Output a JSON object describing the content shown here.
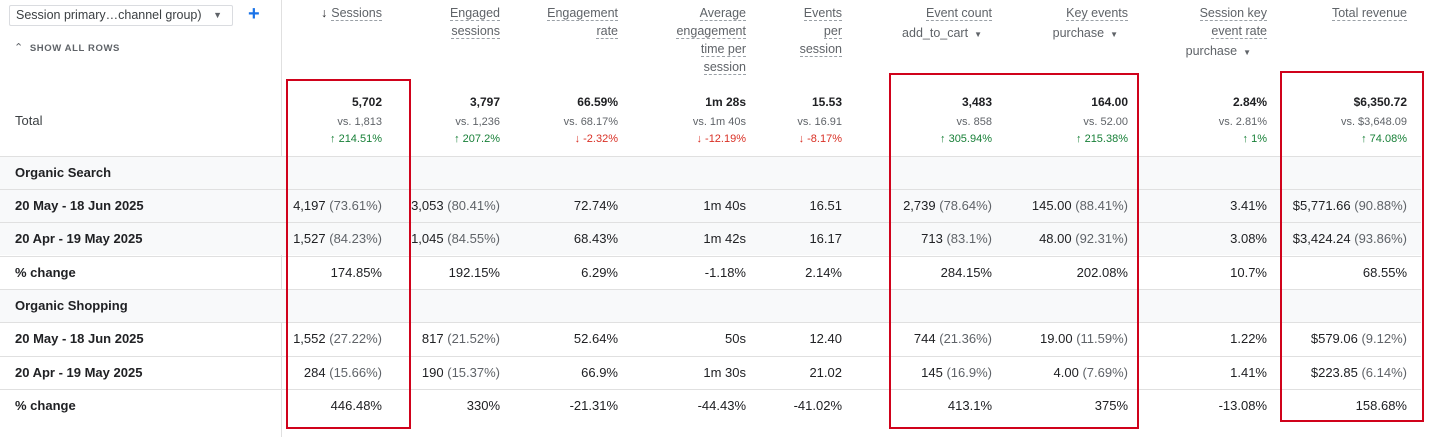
{
  "dimension_selector": {
    "label": "Session primary…channel group)"
  },
  "show_all_rows": "SHOW ALL ROWS",
  "columns": [
    {
      "lines": [
        "Sessions"
      ],
      "sorted": true
    },
    {
      "lines": [
        "Engaged",
        "sessions"
      ]
    },
    {
      "lines": [
        "Engagement",
        "rate"
      ]
    },
    {
      "lines": [
        "Average",
        "engagement",
        "time per",
        "session"
      ]
    },
    {
      "lines": [
        "Events",
        "per",
        "session"
      ]
    },
    {
      "lines": [
        "Event count"
      ],
      "filter": "add_to_cart"
    },
    {
      "lines": [
        "Key events"
      ],
      "filter": "purchase"
    },
    {
      "lines": [
        "Session key",
        "event rate"
      ],
      "filter": "purchase"
    },
    {
      "lines": [
        "Total revenue"
      ]
    }
  ],
  "total": {
    "label": "Total",
    "values": [
      {
        "value": "5,702",
        "vs": "vs. 1,813",
        "change": "↑ 214.51%",
        "dir": "up"
      },
      {
        "value": "3,797",
        "vs": "vs. 1,236",
        "change": "↑ 207.2%",
        "dir": "up"
      },
      {
        "value": "66.59%",
        "vs": "vs. 68.17%",
        "change": "↓ -2.32%",
        "dir": "down"
      },
      {
        "value": "1m 28s",
        "vs": "vs. 1m 40s",
        "change": "↓ -12.19%",
        "dir": "down"
      },
      {
        "value": "15.53",
        "vs": "vs. 16.91",
        "change": "↓ -8.17%",
        "dir": "down"
      },
      {
        "value": "3,483",
        "vs": "vs. 858",
        "change": "↑ 305.94%",
        "dir": "up"
      },
      {
        "value": "164.00",
        "vs": "vs. 52.00",
        "change": "↑ 215.38%",
        "dir": "up"
      },
      {
        "value": "2.84%",
        "vs": "vs. 2.81%",
        "change": "↑ 1%",
        "dir": "up"
      },
      {
        "value": "$6,350.72",
        "vs": "vs. $3,648.09",
        "change": "↑ 74.08%",
        "dir": "up"
      }
    ]
  },
  "rows": [
    {
      "label": "Organic Search",
      "group": true,
      "cells": []
    },
    {
      "label": "20 May - 18 Jun 2025",
      "shaded": true,
      "cells": [
        [
          "4,197",
          " (73.61%)"
        ],
        [
          "3,053",
          " (80.41%)"
        ],
        [
          "72.74%",
          ""
        ],
        [
          "1m 40s",
          ""
        ],
        [
          "16.51",
          ""
        ],
        [
          "2,739",
          " (78.64%)"
        ],
        [
          "145.00",
          " (88.41%)"
        ],
        [
          "3.41%",
          ""
        ],
        [
          "$5,771.66",
          " (90.88%)"
        ]
      ]
    },
    {
      "label": "20 Apr - 19 May 2025",
      "shaded": true,
      "cells": [
        [
          "1,527",
          " (84.23%)"
        ],
        [
          "1,045",
          " (84.55%)"
        ],
        [
          "68.43%",
          ""
        ],
        [
          "1m 42s",
          ""
        ],
        [
          "16.17",
          ""
        ],
        [
          "713",
          " (83.1%)"
        ],
        [
          "48.00",
          " (92.31%)"
        ],
        [
          "3.08%",
          ""
        ],
        [
          "$3,424.24",
          " (93.86%)"
        ]
      ]
    },
    {
      "label": "% change",
      "cells": [
        [
          "174.85%",
          ""
        ],
        [
          "192.15%",
          ""
        ],
        [
          "6.29%",
          ""
        ],
        [
          "-1.18%",
          ""
        ],
        [
          "2.14%",
          ""
        ],
        [
          "284.15%",
          ""
        ],
        [
          "202.08%",
          ""
        ],
        [
          "10.7%",
          ""
        ],
        [
          "68.55%",
          ""
        ]
      ]
    },
    {
      "label": "Organic Shopping",
      "group": true,
      "cells": []
    },
    {
      "label": "20 May - 18 Jun 2025",
      "cells": [
        [
          "1,552",
          " (27.22%)"
        ],
        [
          "817",
          " (21.52%)"
        ],
        [
          "52.64%",
          ""
        ],
        [
          "50s",
          ""
        ],
        [
          "12.40",
          ""
        ],
        [
          "744",
          " (21.36%)"
        ],
        [
          "19.00",
          " (11.59%)"
        ],
        [
          "1.22%",
          ""
        ],
        [
          "$579.06",
          " (9.12%)"
        ]
      ]
    },
    {
      "label": "20 Apr - 19 May 2025",
      "cells": [
        [
          "284",
          " (15.66%)"
        ],
        [
          "190",
          " (15.37%)"
        ],
        [
          "66.9%",
          ""
        ],
        [
          "1m 30s",
          ""
        ],
        [
          "21.02",
          ""
        ],
        [
          "145",
          " (16.9%)"
        ],
        [
          "4.00",
          " (7.69%)"
        ],
        [
          "1.41%",
          ""
        ],
        [
          "$223.85",
          " (6.14%)"
        ]
      ]
    },
    {
      "label": "% change",
      "cells": [
        [
          "446.48%",
          ""
        ],
        [
          "330%",
          ""
        ],
        [
          "-21.31%",
          ""
        ],
        [
          "-44.43%",
          ""
        ],
        [
          "-41.02%",
          ""
        ],
        [
          "413.1%",
          ""
        ],
        [
          "375%",
          ""
        ],
        [
          "-13.08%",
          ""
        ],
        [
          "158.68%",
          ""
        ]
      ]
    }
  ],
  "colors": {
    "up": "#188038",
    "down": "#d93025",
    "highlight": "#d0021b",
    "accent": "#1a73e8"
  }
}
